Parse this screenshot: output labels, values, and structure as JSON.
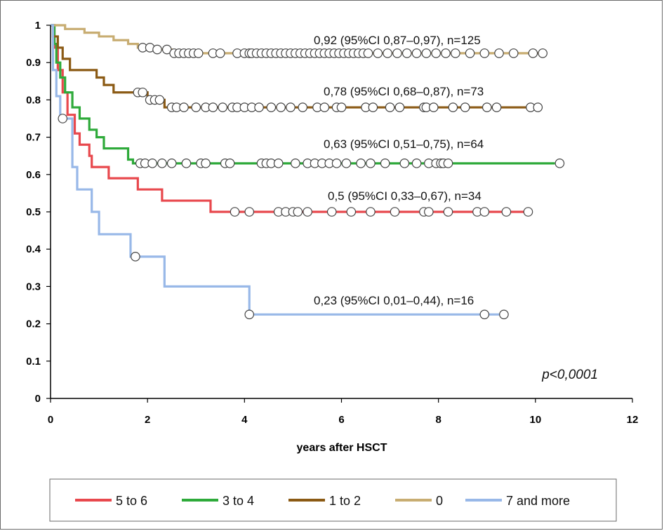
{
  "chart_data": {
    "type": "line",
    "title": "",
    "xlabel": "years after HSCT",
    "ylabel": "",
    "xlim": [
      0,
      12
    ],
    "ylim": [
      0,
      1
    ],
    "x_ticks": [
      0,
      2,
      4,
      6,
      8,
      10,
      12
    ],
    "y_ticks": [
      0,
      0.1,
      0.2,
      0.3,
      0.4,
      0.5,
      0.6,
      0.7,
      0.8,
      0.9,
      1
    ],
    "y_tick_labels": [
      "0",
      "0.1",
      "0.2",
      "0.3",
      "0.4",
      "0.5",
      "0.6",
      "0.7",
      "0.8",
      "0.9",
      "1"
    ],
    "grid": false,
    "legend_position": "bottom",
    "p_value": "p<0,0001",
    "series": [
      {
        "name": "5 to 6",
        "color": "#e8484d",
        "steps": [
          [
            0,
            1
          ],
          [
            0.08,
            0.94
          ],
          [
            0.15,
            0.88
          ],
          [
            0.25,
            0.82
          ],
          [
            0.35,
            0.76
          ],
          [
            0.5,
            0.71
          ],
          [
            0.6,
            0.68
          ],
          [
            0.8,
            0.65
          ],
          [
            0.85,
            0.62
          ],
          [
            1.2,
            0.59
          ],
          [
            1.8,
            0.56
          ],
          [
            2.3,
            0.53
          ],
          [
            3.3,
            0.5
          ],
          [
            9.9,
            0.5
          ]
        ],
        "censored": [
          3.8,
          4.1,
          4.7,
          4.85,
          5.0,
          5.1,
          5.3,
          5.8,
          6.2,
          6.6,
          7.1,
          7.7,
          7.8,
          8.2,
          8.8,
          8.95,
          9.4,
          9.85
        ],
        "annotation": "0,5 (95%CI 0,33–0,67), n=34"
      },
      {
        "name": "3 to 4",
        "color": "#2eaa3a",
        "steps": [
          [
            0,
            1
          ],
          [
            0.08,
            0.95
          ],
          [
            0.12,
            0.9
          ],
          [
            0.2,
            0.86
          ],
          [
            0.3,
            0.82
          ],
          [
            0.45,
            0.78
          ],
          [
            0.6,
            0.75
          ],
          [
            0.8,
            0.72
          ],
          [
            0.95,
            0.7
          ],
          [
            1.1,
            0.67
          ],
          [
            1.6,
            0.64
          ],
          [
            1.7,
            0.63
          ],
          [
            10.4,
            0.63
          ]
        ],
        "censored": [
          1.85,
          1.95,
          2.1,
          2.3,
          2.5,
          2.8,
          3.1,
          3.2,
          3.6,
          3.7,
          4.35,
          4.45,
          4.55,
          4.7,
          5.05,
          5.3,
          5.45,
          5.6,
          5.75,
          5.9,
          6.1,
          6.4,
          6.6,
          6.9,
          7.3,
          7.55,
          7.8,
          7.95,
          8.05,
          8.1,
          8.2,
          10.5
        ],
        "annotation": "0,63 (95%CI 0,51–0,75), n=64"
      },
      {
        "name": "1 to 2",
        "color": "#8b5a14",
        "steps": [
          [
            0,
            1
          ],
          [
            0.05,
            0.97
          ],
          [
            0.15,
            0.94
          ],
          [
            0.25,
            0.91
          ],
          [
            0.4,
            0.88
          ],
          [
            0.95,
            0.86
          ],
          [
            1.1,
            0.84
          ],
          [
            1.3,
            0.82
          ],
          [
            2.0,
            0.8
          ],
          [
            2.35,
            0.78
          ],
          [
            10.0,
            0.78
          ]
        ],
        "censored": [
          1.8,
          1.9,
          2.05,
          2.15,
          2.25,
          2.5,
          2.6,
          2.75,
          3.0,
          3.2,
          3.35,
          3.55,
          3.75,
          3.85,
          4.0,
          4.15,
          4.3,
          4.55,
          4.75,
          4.95,
          5.2,
          5.5,
          5.65,
          5.9,
          6.0,
          6.5,
          6.65,
          7.0,
          7.2,
          7.7,
          7.75,
          7.9,
          8.3,
          8.55,
          9.0,
          9.2,
          9.9,
          10.05
        ],
        "annotation": "0,78 (95%CI 0,68–0,87), n=73"
      },
      {
        "name": "0",
        "color": "#c8ad72",
        "steps": [
          [
            0,
            1
          ],
          [
            0.3,
            0.99
          ],
          [
            0.7,
            0.98
          ],
          [
            1.0,
            0.97
          ],
          [
            1.3,
            0.96
          ],
          [
            1.6,
            0.95
          ],
          [
            1.8,
            0.94
          ],
          [
            2.2,
            0.935
          ],
          [
            2.5,
            0.925
          ],
          [
            10.1,
            0.925
          ]
        ],
        "censored": [
          1.9,
          2.05,
          2.2,
          2.4,
          2.55,
          2.65,
          2.75,
          2.85,
          2.95,
          3.05,
          3.35,
          3.5,
          3.85,
          4.0,
          4.1,
          4.15,
          4.25,
          4.35,
          4.45,
          4.55,
          4.65,
          4.75,
          4.85,
          4.95,
          5.05,
          5.15,
          5.25,
          5.35,
          5.45,
          5.55,
          5.65,
          5.75,
          5.85,
          5.95,
          6.05,
          6.15,
          6.25,
          6.35,
          6.45,
          6.55,
          6.75,
          6.95,
          7.15,
          7.35,
          7.55,
          7.75,
          7.95,
          8.15,
          8.35,
          8.65,
          8.95,
          9.25,
          9.55,
          9.95,
          10.15
        ],
        "annotation": "0,92 (95%CI 0,87–0,97),  n=125"
      },
      {
        "name": "7 and more",
        "color": "#98b8e8",
        "steps": [
          [
            0,
            1
          ],
          [
            0.05,
            0.88
          ],
          [
            0.12,
            0.81
          ],
          [
            0.2,
            0.75
          ],
          [
            0.45,
            0.62
          ],
          [
            0.55,
            0.56
          ],
          [
            0.85,
            0.5
          ],
          [
            1.0,
            0.44
          ],
          [
            1.65,
            0.38
          ],
          [
            2.35,
            0.3
          ],
          [
            4.1,
            0.225
          ],
          [
            9.35,
            0.225
          ]
        ],
        "censored": [
          0.25,
          1.75,
          4.1,
          8.95,
          9.35
        ],
        "annotation": "0,23 (95%CI 0,01–0,44), n=16"
      }
    ]
  }
}
